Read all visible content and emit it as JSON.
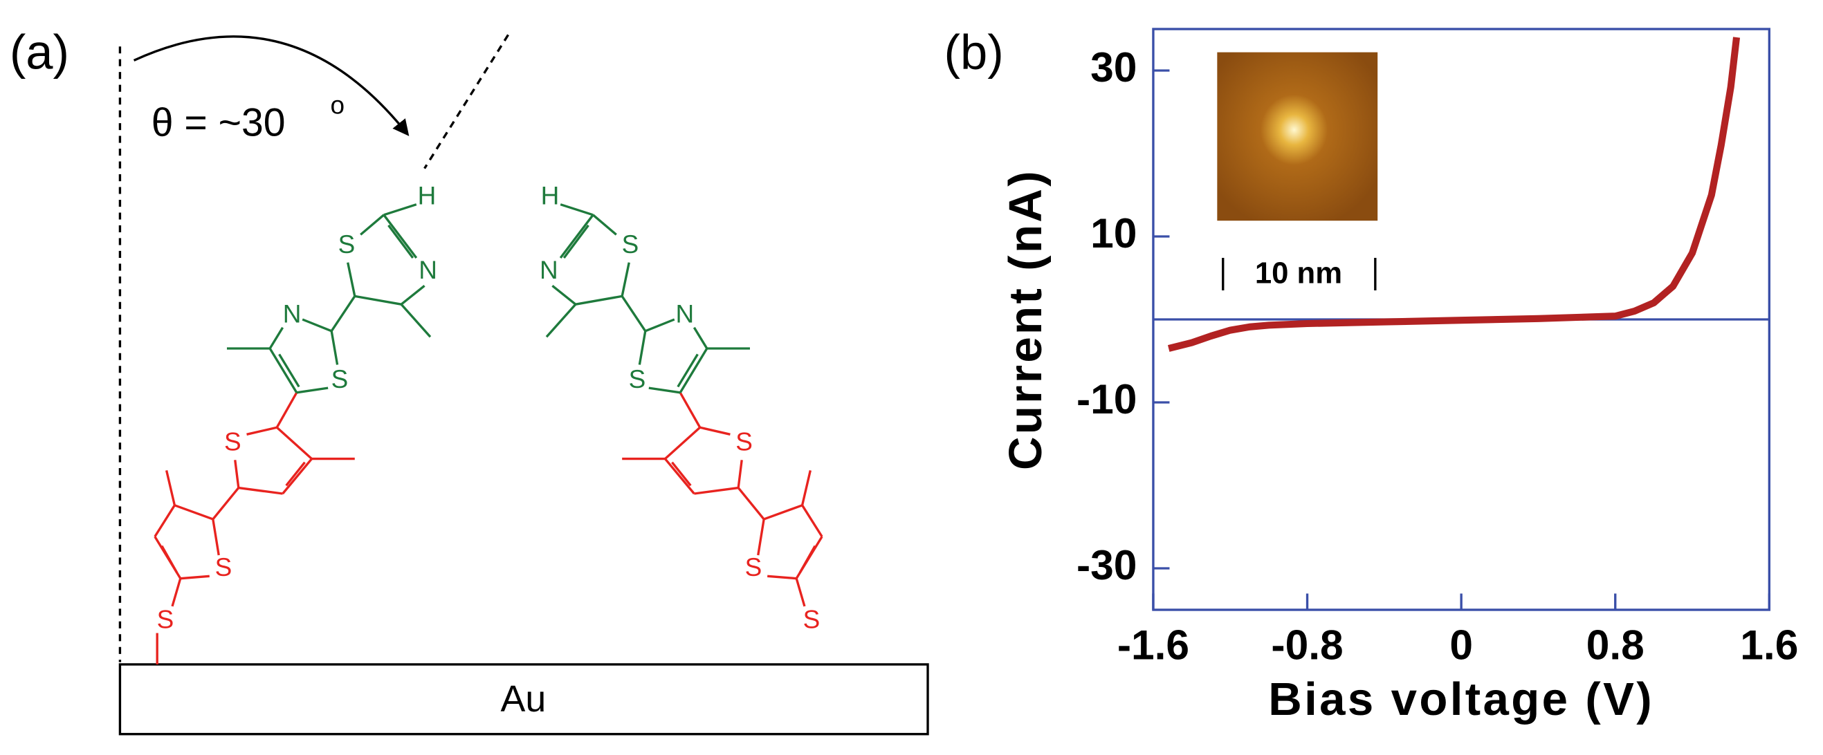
{
  "panel_a": {
    "label": "(a)",
    "angle_label": "θ = ~30",
    "angle_superscript": "o",
    "substrate": "Au",
    "left_molecule_atoms": [
      "S",
      "S",
      "S",
      "N",
      "S",
      "S",
      "N",
      "H"
    ],
    "right_molecule_atoms": [
      "S",
      "S",
      "S",
      "N",
      "S",
      "S",
      "N",
      "H"
    ]
  },
  "chart_data": {
    "type": "line",
    "panel_label": "(b)",
    "x_label": "Bias voltage (V)",
    "y_label": "Current (nA)",
    "x": [
      -1.52,
      -1.4,
      -1.3,
      -1.2,
      -1.1,
      -1.0,
      -0.8,
      -0.4,
      0,
      0.4,
      0.8,
      0.9,
      1.0,
      1.1,
      1.2,
      1.3,
      1.35,
      1.4,
      1.43
    ],
    "series": [
      {
        "color": "#b22222",
        "values": [
          -3.5,
          -2.8,
          -2,
          -1.3,
          -0.9,
          -0.7,
          -0.5,
          -0.3,
          -0.1,
          0.1,
          0.4,
          1,
          2,
          4,
          8,
          15,
          21,
          28,
          34
        ]
      }
    ],
    "xlim": [
      -1.6,
      1.6
    ],
    "ylim": [
      -35,
      35
    ],
    "xticks": [
      -1.6,
      -0.8,
      0,
      0.8,
      1.6
    ],
    "yticks": [
      -30,
      -10,
      10,
      30
    ],
    "axis_color": "#3a4fa8",
    "inset": {
      "scale_label": "10 nm"
    }
  }
}
